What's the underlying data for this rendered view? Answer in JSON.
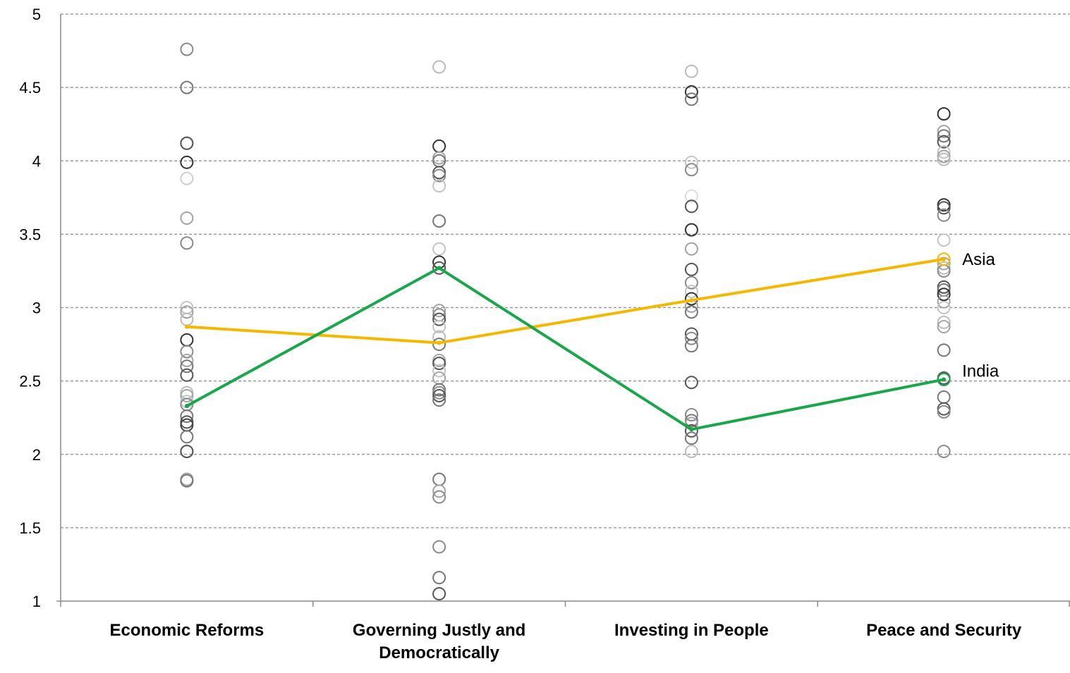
{
  "chart_data": {
    "type": "scatter",
    "title": "",
    "xlabel": "",
    "ylabel": "",
    "ylim": [
      1,
      5
    ],
    "yticks": [
      "1",
      "1.5",
      "2",
      "2.5",
      "3",
      "3.5",
      "4",
      "4.5",
      "5"
    ],
    "grid": true,
    "legend": "none (series labeled at line ends)",
    "categories": [
      [
        "Economic Reforms"
      ],
      [
        "Governing Justly and",
        "Democratically"
      ],
      [
        "Investing in People"
      ],
      [
        "Peace and Security"
      ]
    ],
    "series": [
      {
        "name": "Asia",
        "color": "#f5b800",
        "values": [
          2.87,
          2.76,
          3.05,
          3.33
        ]
      },
      {
        "name": "India",
        "color": "#1aa64a",
        "values": [
          2.33,
          3.27,
          2.17,
          2.51
        ]
      }
    ],
    "country_scores": [
      {
        "category": "Economic Reforms",
        "points": [
          {
            "v": 4.76,
            "c": "#8a8a8a"
          },
          {
            "v": 4.5,
            "c": "#777777"
          },
          {
            "v": 4.12,
            "c": "#aaaaaa"
          },
          {
            "v": 4.12,
            "c": "#555555"
          },
          {
            "v": 3.99,
            "c": "#333333"
          },
          {
            "v": 3.88,
            "c": "#cfcfcf"
          },
          {
            "v": 3.61,
            "c": "#a3a3a3"
          },
          {
            "v": 3.44,
            "c": "#8a8a8a"
          },
          {
            "v": 3.0,
            "c": "#c4c4c4"
          },
          {
            "v": 2.97,
            "c": "#a3a3a3"
          },
          {
            "v": 2.92,
            "c": "#bbbbbb"
          },
          {
            "v": 2.78,
            "c": "#333333"
          },
          {
            "v": 2.7,
            "c": "#8a8a8a"
          },
          {
            "v": 2.64,
            "c": "#a3a3a3"
          },
          {
            "v": 2.6,
            "c": "#777777"
          },
          {
            "v": 2.54,
            "c": "#555555"
          },
          {
            "v": 2.42,
            "c": "#bbbbbb"
          },
          {
            "v": 2.4,
            "c": "#a3a3a3"
          },
          {
            "v": 2.36,
            "c": "#c4c4c4"
          },
          {
            "v": 2.34,
            "c": "#8a8a8a"
          },
          {
            "v": 2.26,
            "c": "#777777"
          },
          {
            "v": 2.22,
            "c": "#555555"
          },
          {
            "v": 2.2,
            "c": "#444444"
          },
          {
            "v": 2.12,
            "c": "#777777"
          },
          {
            "v": 2.02,
            "c": "#8a8a8a"
          },
          {
            "v": 2.02,
            "c": "#555555"
          },
          {
            "v": 1.83,
            "c": "#a3a3a3"
          },
          {
            "v": 1.82,
            "c": "#777777"
          }
        ]
      },
      {
        "category": "Governing Justly and Democratically",
        "points": [
          {
            "v": 4.64,
            "c": "#bbbbbb"
          },
          {
            "v": 4.1,
            "c": "#333333"
          },
          {
            "v": 4.02,
            "c": "#a3a3a3"
          },
          {
            "v": 4.0,
            "c": "#777777"
          },
          {
            "v": 3.92,
            "c": "#555555"
          },
          {
            "v": 3.9,
            "c": "#8a8a8a"
          },
          {
            "v": 3.83,
            "c": "#c4c4c4"
          },
          {
            "v": 3.59,
            "c": "#777777"
          },
          {
            "v": 3.4,
            "c": "#c4c4c4"
          },
          {
            "v": 3.31,
            "c": "#333333"
          },
          {
            "v": 3.27,
            "c": "#555555"
          },
          {
            "v": 2.98,
            "c": "#a3a3a3"
          },
          {
            "v": 2.95,
            "c": "#8a8a8a"
          },
          {
            "v": 2.92,
            "c": "#555555"
          },
          {
            "v": 2.87,
            "c": "#c4c4c4"
          },
          {
            "v": 2.8,
            "c": "#bbbbbb"
          },
          {
            "v": 2.75,
            "c": "#777777"
          },
          {
            "v": 2.64,
            "c": "#a3a3a3"
          },
          {
            "v": 2.62,
            "c": "#555555"
          },
          {
            "v": 2.57,
            "c": "#c4c4c4"
          },
          {
            "v": 2.52,
            "c": "#a3a3a3"
          },
          {
            "v": 2.44,
            "c": "#777777"
          },
          {
            "v": 2.42,
            "c": "#8a8a8a"
          },
          {
            "v": 2.4,
            "c": "#555555"
          },
          {
            "v": 2.37,
            "c": "#777777"
          },
          {
            "v": 1.83,
            "c": "#777777"
          },
          {
            "v": 1.75,
            "c": "#a3a3a3"
          },
          {
            "v": 1.71,
            "c": "#8a8a8a"
          },
          {
            "v": 1.37,
            "c": "#8a8a8a"
          },
          {
            "v": 1.16,
            "c": "#777777"
          },
          {
            "v": 1.05,
            "c": "#555555"
          }
        ]
      },
      {
        "category": "Investing in People",
        "points": [
          {
            "v": 4.61,
            "c": "#bbbbbb"
          },
          {
            "v": 4.47,
            "c": "#333333"
          },
          {
            "v": 4.42,
            "c": "#777777"
          },
          {
            "v": 3.99,
            "c": "#c4c4c4"
          },
          {
            "v": 3.94,
            "c": "#8a8a8a"
          },
          {
            "v": 3.76,
            "c": "#dddddd"
          },
          {
            "v": 3.69,
            "c": "#555555"
          },
          {
            "v": 3.53,
            "c": "#333333"
          },
          {
            "v": 3.4,
            "c": "#a3a3a3"
          },
          {
            "v": 3.26,
            "c": "#555555"
          },
          {
            "v": 3.17,
            "c": "#8a8a8a"
          },
          {
            "v": 3.11,
            "c": "#c4c4c4"
          },
          {
            "v": 3.06,
            "c": "#333333"
          },
          {
            "v": 3.01,
            "c": "#a3a3a3"
          },
          {
            "v": 2.97,
            "c": "#777777"
          },
          {
            "v": 2.82,
            "c": "#555555"
          },
          {
            "v": 2.79,
            "c": "#8a8a8a"
          },
          {
            "v": 2.74,
            "c": "#777777"
          },
          {
            "v": 2.49,
            "c": "#555555"
          },
          {
            "v": 2.27,
            "c": "#8a8a8a"
          },
          {
            "v": 2.23,
            "c": "#777777"
          },
          {
            "v": 2.21,
            "c": "#a3a3a3"
          },
          {
            "v": 2.16,
            "c": "#555555"
          },
          {
            "v": 2.11,
            "c": "#777777"
          },
          {
            "v": 2.02,
            "c": "#bbbbbb"
          }
        ]
      },
      {
        "category": "Peace and Security",
        "points": [
          {
            "v": 4.32,
            "c": "#333333"
          },
          {
            "v": 4.2,
            "c": "#a3a3a3"
          },
          {
            "v": 4.17,
            "c": "#777777"
          },
          {
            "v": 4.13,
            "c": "#555555"
          },
          {
            "v": 4.06,
            "c": "#c4c4c4"
          },
          {
            "v": 4.03,
            "c": "#a3a3a3"
          },
          {
            "v": 4.01,
            "c": "#bbbbbb"
          },
          {
            "v": 3.7,
            "c": "#333333"
          },
          {
            "v": 3.68,
            "c": "#555555"
          },
          {
            "v": 3.63,
            "c": "#8a8a8a"
          },
          {
            "v": 3.46,
            "c": "#c4c4c4"
          },
          {
            "v": 3.3,
            "c": "#a3a3a3"
          },
          {
            "v": 3.27,
            "c": "#bbbbbb"
          },
          {
            "v": 3.25,
            "c": "#8a8a8a"
          },
          {
            "v": 3.14,
            "c": "#555555"
          },
          {
            "v": 3.12,
            "c": "#777777"
          },
          {
            "v": 3.09,
            "c": "#333333"
          },
          {
            "v": 3.04,
            "c": "#a3a3a3"
          },
          {
            "v": 3.0,
            "c": "#c4c4c4"
          },
          {
            "v": 2.9,
            "c": "#bbbbbb"
          },
          {
            "v": 2.87,
            "c": "#a3a3a3"
          },
          {
            "v": 2.71,
            "c": "#777777"
          },
          {
            "v": 2.52,
            "c": "#555555"
          },
          {
            "v": 2.39,
            "c": "#777777"
          },
          {
            "v": 2.31,
            "c": "#555555"
          },
          {
            "v": 2.29,
            "c": "#8a8a8a"
          },
          {
            "v": 2.02,
            "c": "#8a8a8a"
          }
        ]
      }
    ]
  }
}
